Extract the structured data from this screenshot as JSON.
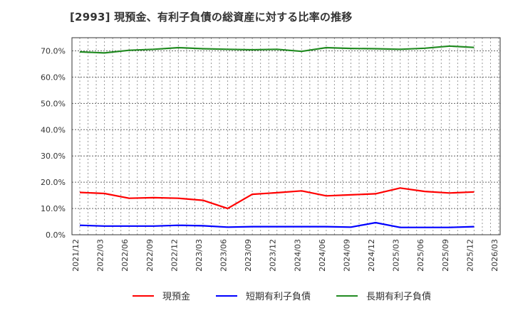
{
  "title": "[2993]  現預金、有利子負債の総資産に対する比率の推移",
  "legend": [
    {
      "label": "現預金",
      "color": "#ff0000"
    },
    {
      "label": "短期有利子負債",
      "color": "#0000ff"
    },
    {
      "label": "長期有利子負債",
      "color": "#228b22"
    }
  ],
  "chart_data": {
    "type": "line",
    "title": "[2993]  現預金、有利子負債の総資産に対する比率の推移",
    "xlabel": "",
    "ylabel": "",
    "ylim": [
      0,
      75
    ],
    "yticks": [
      "0.0%",
      "10.0%",
      "20.0%",
      "30.0%",
      "40.0%",
      "50.0%",
      "60.0%",
      "70.0%"
    ],
    "xtick_labels": [
      "2021/12",
      "2022/03",
      "2022/06",
      "2022/09",
      "2022/12",
      "2023/03",
      "2023/06",
      "2023/09",
      "2023/12",
      "2024/03",
      "2024/06",
      "2024/09",
      "2024/12",
      "2025/03",
      "2025/06",
      "2025/09",
      "2025/12",
      "2026/03"
    ],
    "x": [
      "2021/12",
      "2022/03",
      "2022/06",
      "2022/09",
      "2022/12",
      "2023/03",
      "2023/06",
      "2023/09",
      "2023/12",
      "2024/03",
      "2024/06",
      "2024/09",
      "2024/12",
      "2025/03",
      "2025/06",
      "2025/09",
      "2025/12"
    ],
    "grid": true,
    "legend_position": "bottom",
    "series": [
      {
        "name": "現預金",
        "color": "#ff0000",
        "values": [
          16.1,
          15.7,
          13.9,
          14.1,
          13.9,
          13.1,
          10.0,
          15.4,
          16.0,
          16.7,
          14.8,
          15.2,
          15.6,
          17.8,
          16.5,
          15.9,
          16.3
        ]
      },
      {
        "name": "短期有利子負債",
        "color": "#0000ff",
        "values": [
          3.6,
          3.3,
          3.3,
          3.3,
          3.6,
          3.4,
          2.9,
          3.1,
          3.1,
          3.1,
          3.1,
          2.9,
          4.6,
          2.8,
          2.8,
          2.8,
          3.1
        ]
      },
      {
        "name": "長期有利子負債",
        "color": "#228b22",
        "values": [
          69.6,
          69.2,
          70.2,
          70.6,
          71.2,
          70.8,
          70.6,
          70.4,
          70.6,
          69.8,
          71.2,
          70.9,
          70.8,
          70.6,
          71.0,
          71.8,
          71.3
        ]
      }
    ]
  }
}
